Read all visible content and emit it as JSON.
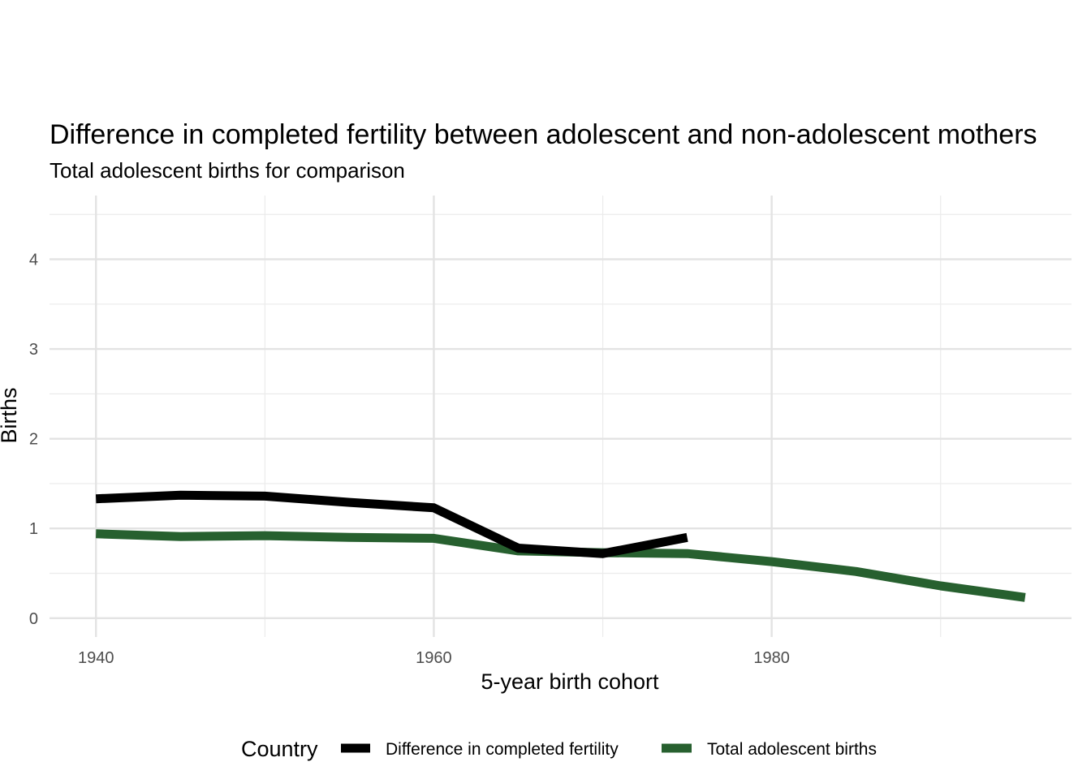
{
  "chart_data": {
    "type": "line",
    "title": "Difference in completed fertility between adolescent and non-adolescent mothers",
    "subtitle": "Total adolescent births for comparison",
    "xlabel": "5-year birth cohort",
    "ylabel": "Births",
    "xlim": [
      1937.25,
      1997.75
    ],
    "ylim": [
      -0.21,
      4.71
    ],
    "x_ticks": [
      1940,
      1960,
      1980
    ],
    "x_minor_ticks": [
      1950,
      1970,
      1990
    ],
    "y_ticks": [
      0,
      1,
      2,
      3,
      4
    ],
    "y_minor_ticks": [
      0.5,
      1.5,
      2.5,
      3.5,
      4.5
    ],
    "grid": true,
    "legend": {
      "title": "Country",
      "position": "bottom"
    },
    "series": [
      {
        "name": "Difference in completed fertility",
        "color": "#000000",
        "x": [
          1940,
          1945,
          1950,
          1955,
          1960,
          1965,
          1970,
          1975
        ],
        "y": [
          1.33,
          1.37,
          1.36,
          1.29,
          1.23,
          0.78,
          0.72,
          0.9
        ]
      },
      {
        "name": "Total adolescent births",
        "color": "#27602f",
        "x": [
          1940,
          1945,
          1950,
          1955,
          1960,
          1965,
          1970,
          1975,
          1980,
          1985,
          1990,
          1995
        ],
        "y": [
          0.94,
          0.91,
          0.92,
          0.9,
          0.89,
          0.75,
          0.73,
          0.72,
          0.63,
          0.52,
          0.36,
          0.23
        ]
      }
    ]
  }
}
